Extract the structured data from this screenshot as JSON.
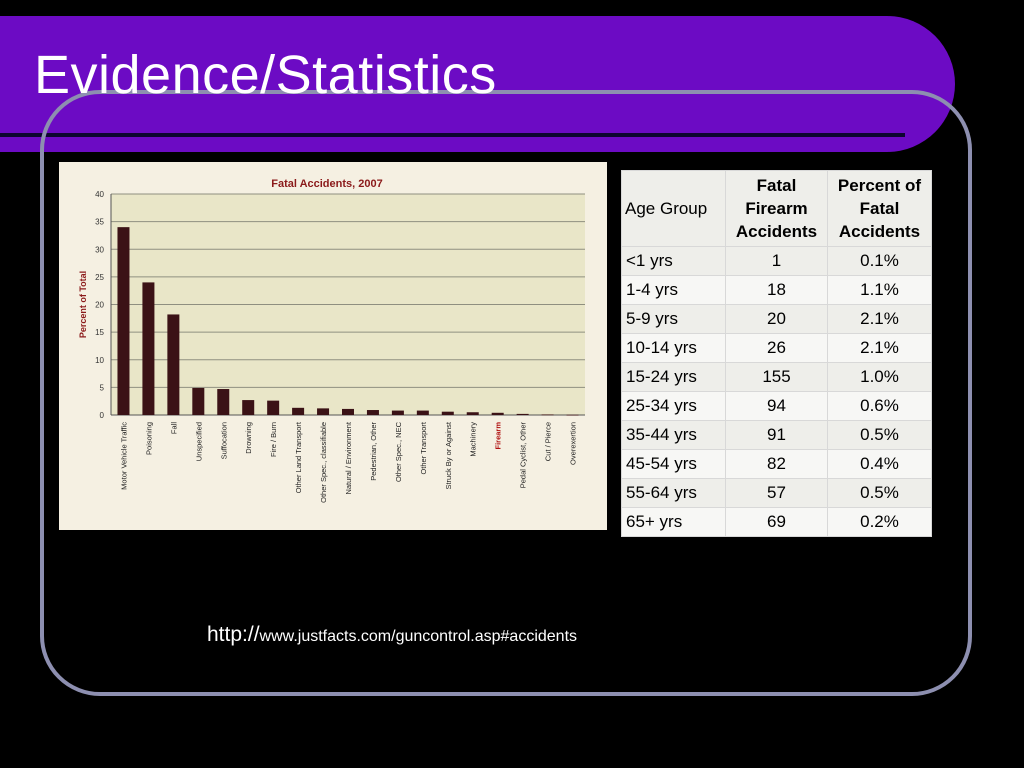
{
  "slide": {
    "title": "Evidence/Statistics",
    "source_protocol": "http://",
    "source_rest": "www.justfacts.com/guncontrol.asp#accidents"
  },
  "colors": {
    "title_band": "#6c0bc4",
    "frame": "#8d8fb0",
    "bar": "#3b1216",
    "chart_title": "#8b1a1a",
    "highlight_label": "#b01010"
  },
  "chart_data": {
    "type": "bar",
    "title": "Fatal Accidents, 2007",
    "ylabel": "Percent of Total",
    "xlabel": "",
    "ylim": [
      0,
      40
    ],
    "yticks": [
      0,
      5,
      10,
      15,
      20,
      25,
      30,
      35,
      40
    ],
    "grid": true,
    "categories": [
      "Motor Vehicle Traffic",
      "Poisoning",
      "Fall",
      "Unspecified",
      "Suffocation",
      "Drowning",
      "Fire / Burn",
      "Other Land Transport",
      "Other Spec., classifiable",
      "Natural / Environment",
      "Pedestrian, Other",
      "Other Spec., NEC",
      "Other Transport",
      "Struck By or Against",
      "Machinery",
      "Firearm",
      "Pedal Cyclist, Other",
      "Cut / Pierce",
      "Overexertion"
    ],
    "values": [
      34,
      24,
      18.2,
      4.9,
      4.7,
      2.7,
      2.6,
      1.3,
      1.2,
      1.1,
      0.9,
      0.8,
      0.8,
      0.6,
      0.5,
      0.4,
      0.2,
      0.1,
      0.05
    ],
    "highlight": "Firearm"
  },
  "table": {
    "headers": [
      "Age Group",
      "Fatal Firearm Accidents",
      "Percent of Fatal Accidents"
    ],
    "rows": [
      [
        "<1 yrs",
        "1",
        "0.1%"
      ],
      [
        "1-4 yrs",
        "18",
        "1.1%"
      ],
      [
        "5-9 yrs",
        "20",
        "2.1%"
      ],
      [
        "10-14 yrs",
        "26",
        "2.1%"
      ],
      [
        "15-24 yrs",
        "155",
        "1.0%"
      ],
      [
        "25-34 yrs",
        "94",
        "0.6%"
      ],
      [
        "35-44 yrs",
        "91",
        "0.5%"
      ],
      [
        "45-54 yrs",
        "82",
        "0.4%"
      ],
      [
        "55-64 yrs",
        "57",
        "0.5%"
      ],
      [
        "65+ yrs",
        "69",
        "0.2%"
      ]
    ]
  }
}
